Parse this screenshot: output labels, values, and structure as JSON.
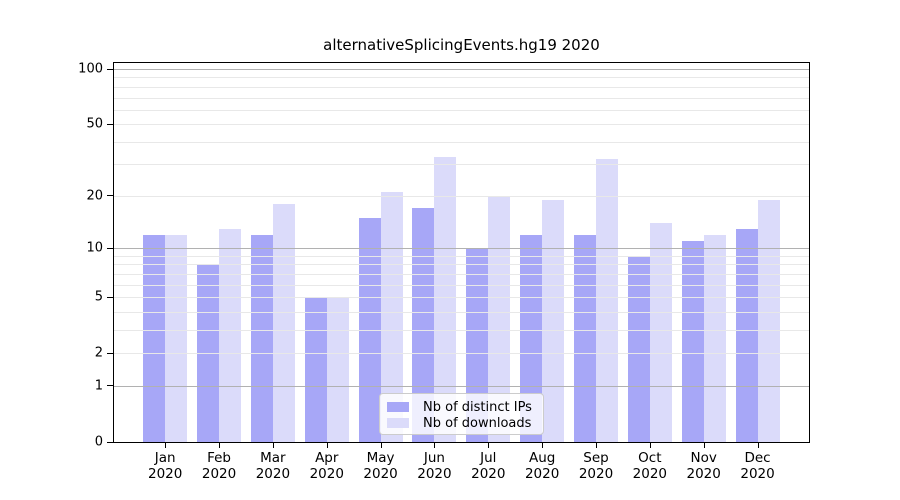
{
  "title": "alternativeSplicingEvents.hg19 2020",
  "chart_data": {
    "type": "bar",
    "title": "alternativeSplicingEvents.hg19 2020",
    "categories": [
      "Jan",
      "Feb",
      "Mar",
      "Apr",
      "May",
      "Jun",
      "Jul",
      "Aug",
      "Sep",
      "Oct",
      "Nov",
      "Dec"
    ],
    "x_tick_year": "2020",
    "series": [
      {
        "name": "Nb of distinct IPs",
        "color": "#a7a7f7",
        "values": [
          12,
          8,
          12,
          5,
          15,
          17,
          10,
          12,
          12,
          9,
          11,
          13
        ]
      },
      {
        "name": "Nb of downloads",
        "color": "#dbdbfa",
        "values": [
          12,
          13,
          18,
          5,
          21,
          33,
          20,
          19,
          32,
          14,
          12,
          19
        ]
      }
    ],
    "yscale": "log10(value+1)",
    "ylim": [
      0,
      110
    ],
    "yticks": [
      0,
      1,
      2,
      5,
      10,
      20,
      50,
      100
    ],
    "major_gridlines": [
      1,
      10,
      100
    ],
    "minor_gridlines": [
      2,
      3,
      4,
      5,
      6,
      7,
      8,
      9,
      20,
      30,
      40,
      50,
      60,
      70,
      80,
      90
    ],
    "grid": true,
    "legend_position": "bottom-center"
  },
  "legend": {
    "items": [
      {
        "label": "Nb of distinct IPs",
        "color": "#a7a7f7"
      },
      {
        "label": "Nb of downloads",
        "color": "#dbdbfa"
      }
    ]
  },
  "colors": {
    "background": "#ffffff",
    "axis": "#000000",
    "grid_major": "#b1b1b1",
    "grid_minor": "#e8e8e8",
    "bar_ips": "#a7a7f7",
    "bar_downloads": "#dbdbfa",
    "legend_border": "#cccccc"
  }
}
